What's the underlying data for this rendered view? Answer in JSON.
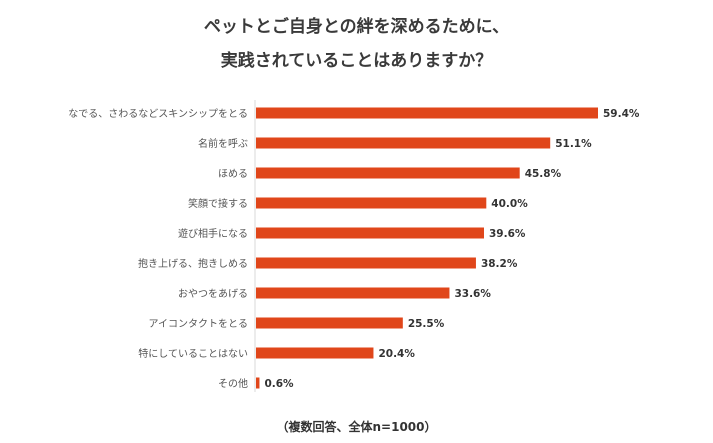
{
  "chart_data": {
    "type": "bar",
    "orientation": "horizontal",
    "title": [
      "ペットとご自身との絆を深めるために、",
      "実践されていることはありますか？"
    ],
    "categories": [
      "なでる、さわるなどスキンシップをとる",
      "名前を呼ぶ",
      "ほめる",
      "笑顔で接する",
      "遊び相手になる",
      "抱き上げる、抱きしめる",
      "おやつをあげる",
      "アイコンタクトをとる",
      "特にしていることはない",
      "その他"
    ],
    "values": [
      59.4,
      51.1,
      45.8,
      40.0,
      39.6,
      38.2,
      33.6,
      25.5,
      20.4,
      0.6
    ],
    "value_labels": [
      "59.4%",
      "51.1%",
      "45.8%",
      "40.0%",
      "39.6%",
      "38.2%",
      "33.6%",
      "25.5%",
      "20.4%",
      "0.6%"
    ],
    "unit": "%",
    "xlim": [
      0,
      60
    ],
    "grid": false,
    "bar_color": "#e0461a",
    "note": "（複数回答、全体n=1000）"
  }
}
